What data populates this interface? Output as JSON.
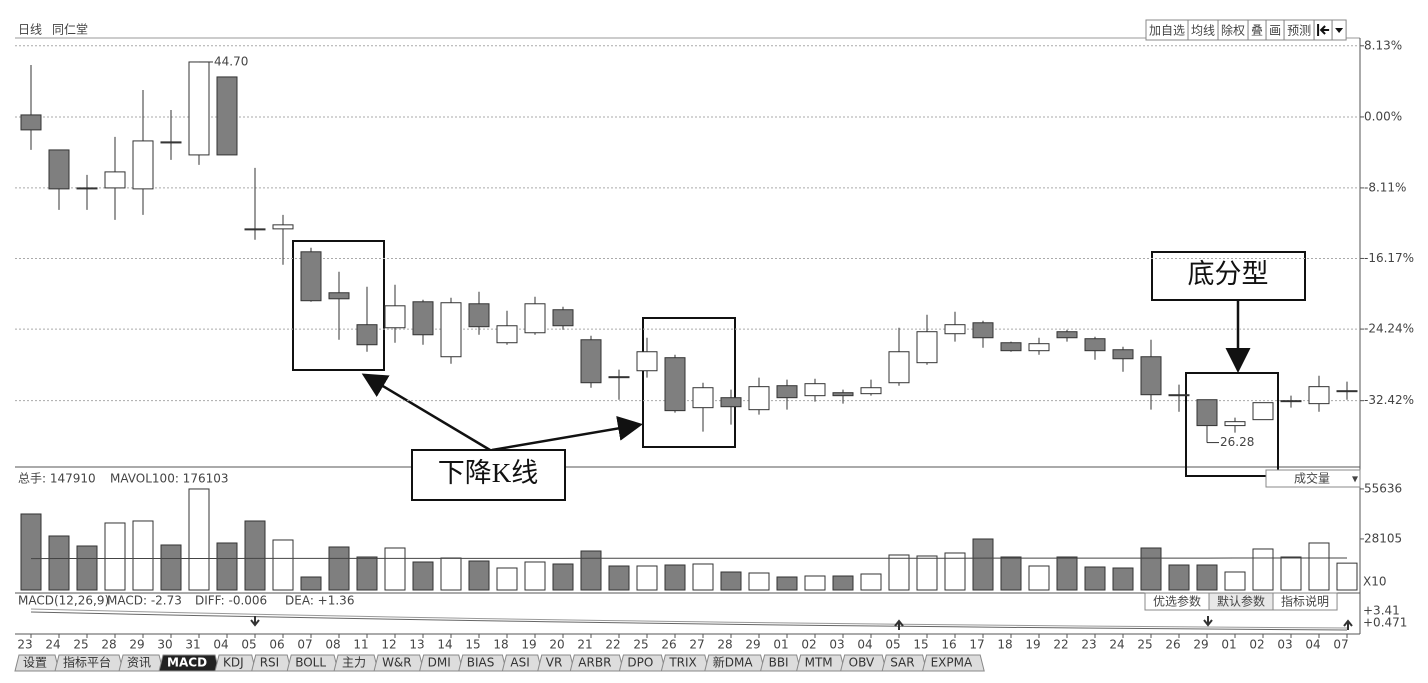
{
  "header": {
    "period": "日线",
    "stock": "同仁堂"
  },
  "toolbar": [
    "加自选",
    "均线",
    "除权",
    "叠",
    "画",
    "预测"
  ],
  "chart_data": [
    {
      "type": "candlestick",
      "categories": [
        "23",
        "24",
        "25",
        "28",
        "29",
        "30",
        "31",
        "04",
        "05",
        "06",
        "07",
        "08",
        "11",
        "12",
        "13",
        "14",
        "15",
        "18",
        "19",
        "20",
        "21",
        "22",
        "25",
        "26",
        "27",
        "28",
        "29",
        "01",
        "02",
        "03",
        "04",
        "05",
        "15",
        "16",
        "17",
        "18",
        "19",
        "22",
        "23",
        "24",
        "25",
        "26",
        "29",
        "01",
        "02",
        "03",
        "04",
        "07"
      ],
      "open": [
        0.23,
        -3.77,
        -8.11,
        -8.11,
        -8.22,
        -2.85,
        -4.34,
        4.57,
        -12.79,
        -12.79,
        -15.41,
        -20.09,
        -23.74,
        -24.09,
        -21.12,
        -27.4,
        -21.35,
        -25.8,
        -24.66,
        -22.03,
        -25.46,
        -29.68,
        -29.0,
        -27.51,
        -33.22,
        -32.08,
        -33.45,
        -30.71,
        -31.85,
        -31.51,
        -31.62,
        -30.37,
        -28.08,
        -24.77,
        -23.52,
        -25.8,
        -26.71,
        -24.54,
        -25.34,
        -26.6,
        -27.4,
        -31.74,
        -32.31,
        -35.27,
        -34.59,
        -32.53,
        -32.76,
        -31.39
      ],
      "high": [
        5.94,
        -3.77,
        -6.62,
        -2.28,
        3.08,
        0.8,
        6.28,
        4.57,
        -5.82,
        -11.19,
        -14.95,
        -17.69,
        -19.41,
        -19.18,
        -20.89,
        -20.66,
        -19.98,
        -22.15,
        -20.55,
        -21.69,
        -25.0,
        -28.88,
        -25.23,
        -27.17,
        -30.37,
        -31.16,
        -29.79,
        -30.02,
        -29.91,
        -31.16,
        -30.02,
        -24.09,
        -22.6,
        -22.26,
        -23.29,
        -25.68,
        -25.23,
        -24.32,
        -25.11,
        -26.26,
        -25.46,
        -30.59,
        -32.31,
        -34.36,
        -32.65,
        -31.85,
        -29.57,
        -30.25
      ],
      "low": [
        -3.77,
        -10.62,
        -10.62,
        -11.76,
        -11.19,
        -4.91,
        -5.48,
        -4.34,
        -14.04,
        -16.89,
        -21.12,
        -25.46,
        -26.83,
        -25.8,
        -26.03,
        -28.2,
        -24.89,
        -26.03,
        -24.89,
        -24.32,
        -30.94,
        -32.31,
        -29.79,
        -33.79,
        -35.96,
        -35.16,
        -34.02,
        -33.45,
        -32.53,
        -32.76,
        -31.85,
        -30.71,
        -28.31,
        -25.68,
        -26.37,
        -26.83,
        -27.17,
        -25.68,
        -27.74,
        -29.11,
        -33.45,
        -33.68,
        -37.21,
        -36.07,
        -34.59,
        -33.22,
        -33.68,
        -32.31
      ],
      "close": [
        -1.48,
        -8.22,
        -8.2,
        -6.28,
        -2.74,
        -2.97,
        6.28,
        -4.34,
        -12.9,
        -12.33,
        -21.0,
        -20.78,
        -26.03,
        -21.58,
        -24.89,
        -21.23,
        -23.97,
        -23.86,
        -21.35,
        -23.86,
        -30.37,
        -29.79,
        -26.83,
        -33.56,
        -30.94,
        -33.11,
        -30.82,
        -32.08,
        -30.48,
        -31.85,
        -30.94,
        -26.83,
        -24.54,
        -23.74,
        -25.23,
        -26.71,
        -25.91,
        -25.23,
        -26.71,
        -27.63,
        -31.74,
        -31.85,
        -35.27,
        -34.82,
        -32.65,
        -32.42,
        -30.82,
        -31.28
      ],
      "up_color": "#ffffff",
      "down_color": "#7f7f7f",
      "ylim": [
        -40,
        9.02
      ],
      "yticks": [
        {
          "value": 8.13,
          "label": "8.13%"
        },
        {
          "value": 0,
          "label": "0.00%"
        },
        {
          "value": -8.11,
          "label": "-8.11%"
        },
        {
          "value": -16.17,
          "label": "-16.17%"
        },
        {
          "value": -24.24,
          "label": "-24.24%"
        },
        {
          "value": -32.42,
          "label": "-32.42%"
        }
      ],
      "grid": true,
      "high_label": "44.70",
      "low_label": "26.28",
      "annotations": {
        "falling": "下降K线",
        "bottom_fractal": "底分型"
      }
    },
    {
      "type": "bar",
      "title": "成交量",
      "header": [
        "总手: 147910",
        "MAVOL100: 176103"
      ],
      "scale_label": "X10",
      "values": [
        41846,
        29732,
        24226,
        36890,
        37991,
        24777,
        55611,
        25878,
        37991,
        27530,
        7158,
        23676,
        18170,
        23125,
        15417,
        17619,
        15967,
        12113,
        15417,
        14316,
        21473,
        13214,
        13214,
        13765,
        14316,
        9911,
        9360,
        7158,
        7708,
        7708,
        8810,
        19271,
        18720,
        20372,
        28081,
        18170,
        13214,
        18170,
        12664,
        12113,
        23125,
        13765,
        13765,
        9911,
        22575,
        18170,
        25878,
        14791
      ],
      "ma_values": [
        17300,
        17310,
        17320,
        17330,
        17340,
        17350,
        17360,
        17370,
        17380,
        17390,
        17400,
        17400,
        17410,
        17410,
        17420,
        17420,
        17430,
        17430,
        17440,
        17440,
        17450,
        17450,
        17460,
        17460,
        17470,
        17470,
        17480,
        17480,
        17490,
        17490,
        17500,
        17500,
        17510,
        17510,
        17520,
        17520,
        17530,
        17530,
        17540,
        17550,
        17560,
        17570,
        17580,
        17590,
        17595,
        17600,
        17605,
        17610
      ],
      "ylim": [
        0,
        57800
      ],
      "yticks": [
        28105,
        55636
      ]
    },
    {
      "type": "macd",
      "header": [
        "MACD(12,26,9)",
        "MACD: -2.73",
        "DIFF: -0.006",
        "DEA: +1.36"
      ],
      "tick_labels": [
        "+3.41",
        "+0.471"
      ],
      "buttons": [
        "优选参数",
        "默认参数",
        "指标说明"
      ]
    }
  ],
  "tabs": [
    "设置",
    "指标平台",
    "资讯",
    "MACD",
    "KDJ",
    "RSI",
    "BOLL",
    "主力",
    "W&R",
    "DMI",
    "BIAS",
    "ASI",
    "VR",
    "ARBR",
    "DPO",
    "TRIX",
    "新DMA",
    "BBI",
    "MTM",
    "OBV",
    "SAR",
    "EXPMA"
  ],
  "active_tab": "MACD"
}
